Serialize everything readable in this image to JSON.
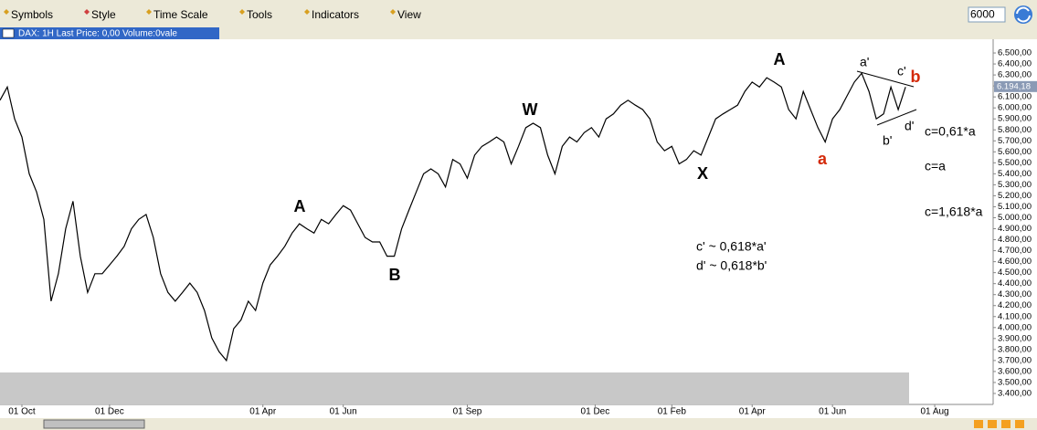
{
  "toolbar": {
    "menus": [
      "Symbols",
      "Style",
      "Time Scale",
      "Tools",
      "Indicators",
      "View"
    ],
    "input": "6000"
  },
  "chart_header": "DAX: 1H Last Price: 0,00 Volume:0vale",
  "chart_data": {
    "type": "line",
    "series": [
      {
        "name": "DAX",
        "color": "#000000",
        "values": [
          6070,
          6190,
          5900,
          5735,
          5400,
          5235,
          4985,
          4240,
          4490,
          4900,
          5150,
          4650,
          4320,
          4490,
          4490,
          4570,
          4650,
          4740,
          4900,
          4985,
          5030,
          4820,
          4490,
          4320,
          4240,
          4320,
          4405,
          4320,
          4155,
          3905,
          3780,
          3700,
          3990,
          4070,
          4240,
          4155,
          4405,
          4570,
          4650,
          4740,
          4860,
          4945,
          4900,
          4860,
          4985,
          4945,
          5030,
          5110,
          5070,
          4945,
          4820,
          4780,
          4780,
          4650,
          4650,
          4900,
          5070,
          5235,
          5400,
          5445,
          5400,
          5280,
          5530,
          5490,
          5360,
          5570,
          5650,
          5690,
          5735,
          5690,
          5490,
          5650,
          5820,
          5860,
          5820,
          5570,
          5400,
          5650,
          5735,
          5690,
          5775,
          5820,
          5735,
          5900,
          5945,
          6025,
          6070,
          6025,
          5985,
          5900,
          5690,
          5610,
          5650,
          5490,
          5530,
          5610,
          5570,
          5735,
          5900,
          5945,
          5985,
          6025,
          6150,
          6235,
          6190,
          6275,
          6235,
          6190,
          5985,
          5900,
          6150,
          5985,
          5820,
          5690,
          5900,
          5985,
          6110,
          6235,
          6315,
          6150,
          5900,
          5945,
          6190,
          5985,
          6190
        ]
      }
    ],
    "xlim": [
      0,
      136
    ],
    "xticks": [
      {
        "value": 3,
        "label": "01 Oct"
      },
      {
        "value": 15,
        "label": "01 Dec"
      },
      {
        "value": 36,
        "label": "01 Apr"
      },
      {
        "value": 47,
        "label": "01 Jun"
      },
      {
        "value": 64,
        "label": "01 Sep"
      },
      {
        "value": 81.5,
        "label": "01 Dec"
      },
      {
        "value": 92,
        "label": "01 Feb"
      },
      {
        "value": 103,
        "label": "01 Apr"
      },
      {
        "value": 114,
        "label": "01 Jun"
      },
      {
        "value": 128,
        "label": "01 Aug"
      }
    ],
    "ylim": [
      3300,
      6625
    ],
    "yticks": [
      {
        "value": 6500,
        "label": "6.500,00"
      },
      {
        "value": 6400,
        "label": "6.400,00"
      },
      {
        "value": 6300,
        "label": "6.300,00"
      },
      {
        "value": 6200,
        "label": "6.200,00"
      },
      {
        "value": 6100,
        "label": "6.100,00"
      },
      {
        "value": 6000,
        "label": "6.000,00"
      },
      {
        "value": 5900,
        "label": "5.900,00"
      },
      {
        "value": 5800,
        "label": "5.800,00"
      },
      {
        "value": 5700,
        "label": "5.700,00"
      },
      {
        "value": 5600,
        "label": "5.600,00"
      },
      {
        "value": 5500,
        "label": "5.500,00"
      },
      {
        "value": 5400,
        "label": "5.400,00"
      },
      {
        "value": 5300,
        "label": "5.300,00"
      },
      {
        "value": 5200,
        "label": "5.200,00"
      },
      {
        "value": 5100,
        "label": "5.100,00"
      },
      {
        "value": 5000,
        "label": "5.000,00"
      },
      {
        "value": 4900,
        "label": "4.900,00"
      },
      {
        "value": 4800,
        "label": "4.800,00"
      },
      {
        "value": 4700,
        "label": "4.700,00"
      },
      {
        "value": 4600,
        "label": "4.600,00"
      },
      {
        "value": 4500,
        "label": "4.500,00"
      },
      {
        "value": 4400,
        "label": "4.400,00"
      },
      {
        "value": 4300,
        "label": "4.300,00"
      },
      {
        "value": 4200,
        "label": "4.200,00"
      },
      {
        "value": 4100,
        "label": "4.100,00"
      },
      {
        "value": 4000,
        "label": "4.000,00"
      },
      {
        "value": 3900,
        "label": "3.900,00"
      },
      {
        "value": 3800,
        "label": "3.800,00"
      },
      {
        "value": 3700,
        "label": "3.700,00"
      },
      {
        "value": 3600,
        "label": "3.600,00"
      },
      {
        "value": 3500,
        "label": "3.500,00"
      },
      {
        "value": 3400,
        "label": "3.400,00"
      }
    ],
    "last_price": {
      "value": 6194.18,
      "label": "6.194,18"
    },
    "annotations": [
      {
        "text": "A",
        "color": "#000000"
      },
      {
        "text": "B",
        "color": "#000000"
      },
      {
        "text": "W",
        "color": "#000000"
      },
      {
        "text": "X",
        "color": "#000000"
      },
      {
        "text": "A",
        "color": "#000000"
      },
      {
        "text": "a",
        "color": "#d42a0a"
      },
      {
        "text": "a'",
        "color": "#000000"
      },
      {
        "text": "c'",
        "color": "#000000"
      },
      {
        "text": "b",
        "color": "#d42a0a"
      },
      {
        "text": "b'",
        "color": "#000000"
      },
      {
        "text": "d'",
        "color": "#000000"
      },
      {
        "text": "c=0,61*a",
        "color": "#000000"
      },
      {
        "text": "c=a",
        "color": "#000000"
      },
      {
        "text": "c=1,618*a",
        "color": "#000000"
      },
      {
        "text": "c' ~ 0,618*a'",
        "color": "#000000"
      },
      {
        "text": "d' ~ 0,618*b'",
        "color": "#000000"
      }
    ]
  }
}
